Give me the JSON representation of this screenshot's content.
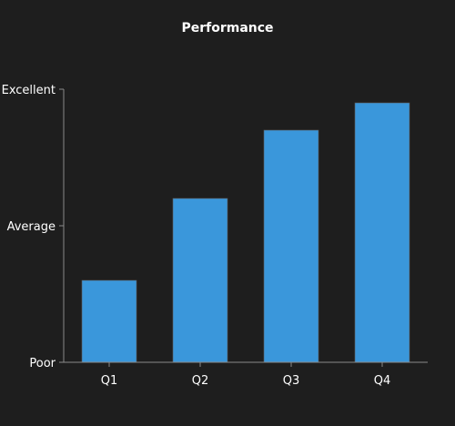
{
  "chart_data": {
    "type": "bar",
    "title": "Performance",
    "xlabel": "",
    "ylabel": "",
    "categories": [
      "Q1",
      "Q2",
      "Q3",
      "Q4"
    ],
    "values": [
      0.3,
      0.6,
      0.85,
      0.95
    ],
    "ylim": [
      0,
      1
    ],
    "y_ticks": [
      {
        "value": 0,
        "label": "Poor"
      },
      {
        "value": 0.5,
        "label": "Average"
      },
      {
        "value": 1,
        "label": "Excellent"
      }
    ],
    "bar_color": "#3a97db",
    "background_color": "#1e1e1e",
    "grid": false,
    "legend": "none"
  }
}
